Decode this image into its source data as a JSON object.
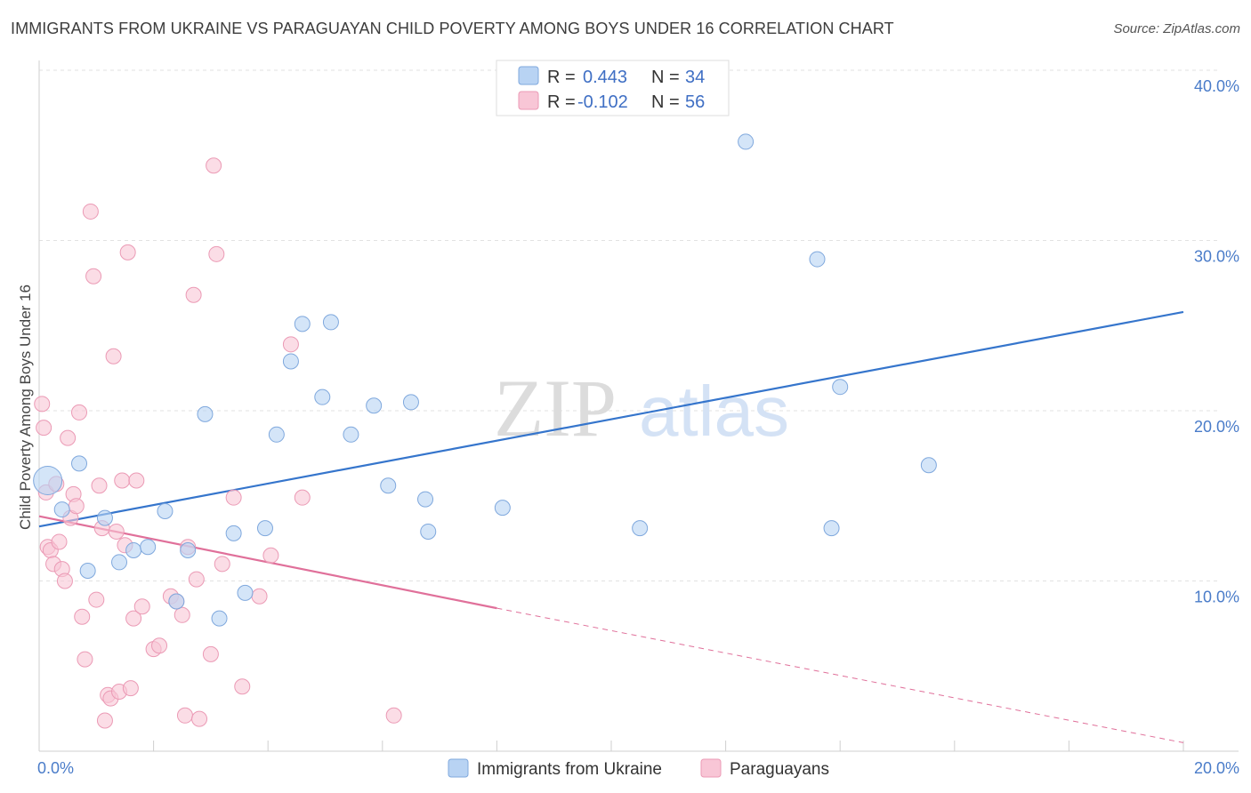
{
  "title": "IMMIGRANTS FROM UKRAINE VS PARAGUAYAN CHILD POVERTY AMONG BOYS UNDER 16 CORRELATION CHART",
  "source": "Source: ZipAtlas.com",
  "watermark": {
    "zip": "ZIP",
    "atlas": "atlas"
  },
  "legend_top": [
    {
      "r_label": "R =",
      "r_value": "0.443",
      "n_label": "N =",
      "n_value": "34"
    },
    {
      "r_label": "R =",
      "r_value": "-0.102",
      "n_label": "N =",
      "n_value": "56"
    }
  ],
  "colors": {
    "ukraine_fill": "#b8d3f3",
    "ukraine_stroke": "#7fa8dd",
    "ukraine_line": "#3575cc",
    "paraguay_fill": "#f8c6d6",
    "paraguay_stroke": "#eb9ab5",
    "paraguay_line": "#e0709a",
    "grid": "#e2e2e2",
    "tick_text": "#4a7cc9"
  },
  "chart_data": {
    "type": "scatter",
    "xlabel": "",
    "ylabel": "Child Poverty Among Boys Under 16",
    "xlim": [
      0,
      20
    ],
    "ylim": [
      0,
      40
    ],
    "x_tick_labels": [
      "0.0%",
      "20.0%"
    ],
    "y_ticks": [
      10,
      20,
      30,
      40
    ],
    "y_tick_labels": [
      "10.0%",
      "20.0%",
      "30.0%",
      "40.0%"
    ],
    "grid": true,
    "legend_position": "top-center",
    "series": [
      {
        "name": "Immigrants from Ukraine",
        "points": [
          [
            0.15,
            15.9
          ],
          [
            0.4,
            14.2
          ],
          [
            0.7,
            16.9
          ],
          [
            0.85,
            10.6
          ],
          [
            1.15,
            13.7
          ],
          [
            1.4,
            11.1
          ],
          [
            1.65,
            11.8
          ],
          [
            1.9,
            12.0
          ],
          [
            2.2,
            14.1
          ],
          [
            2.4,
            8.8
          ],
          [
            2.6,
            11.8
          ],
          [
            2.9,
            19.8
          ],
          [
            3.15,
            7.8
          ],
          [
            3.4,
            12.8
          ],
          [
            3.6,
            9.3
          ],
          [
            3.95,
            13.1
          ],
          [
            4.15,
            18.6
          ],
          [
            4.4,
            22.9
          ],
          [
            4.6,
            25.1
          ],
          [
            4.95,
            20.8
          ],
          [
            5.1,
            25.2
          ],
          [
            5.45,
            18.6
          ],
          [
            5.85,
            20.3
          ],
          [
            6.1,
            15.6
          ],
          [
            6.5,
            20.5
          ],
          [
            6.75,
            14.8
          ],
          [
            6.8,
            12.9
          ],
          [
            8.1,
            14.3
          ],
          [
            10.5,
            13.1
          ],
          [
            12.35,
            35.8
          ],
          [
            13.6,
            28.9
          ],
          [
            13.85,
            13.1
          ],
          [
            14.0,
            21.4
          ],
          [
            15.55,
            16.8
          ]
        ],
        "trend": {
          "x": [
            0,
            20
          ],
          "y": [
            13.2,
            25.8
          ]
        }
      },
      {
        "name": "Paraguayans",
        "points": [
          [
            0.05,
            20.4
          ],
          [
            0.08,
            19.0
          ],
          [
            0.12,
            15.2
          ],
          [
            0.15,
            12.0
          ],
          [
            0.2,
            11.8
          ],
          [
            0.25,
            11.0
          ],
          [
            0.3,
            15.7
          ],
          [
            0.35,
            12.3
          ],
          [
            0.4,
            10.7
          ],
          [
            0.45,
            10.0
          ],
          [
            0.5,
            18.4
          ],
          [
            0.55,
            13.7
          ],
          [
            0.6,
            15.1
          ],
          [
            0.65,
            14.4
          ],
          [
            0.7,
            19.9
          ],
          [
            0.75,
            7.9
          ],
          [
            0.8,
            5.4
          ],
          [
            0.9,
            31.7
          ],
          [
            0.95,
            27.9
          ],
          [
            1.0,
            8.9
          ],
          [
            1.05,
            15.6
          ],
          [
            1.1,
            13.1
          ],
          [
            1.15,
            1.8
          ],
          [
            1.2,
            3.3
          ],
          [
            1.25,
            3.1
          ],
          [
            1.3,
            23.2
          ],
          [
            1.35,
            12.9
          ],
          [
            1.4,
            3.5
          ],
          [
            1.45,
            15.9
          ],
          [
            1.5,
            12.1
          ],
          [
            1.55,
            29.3
          ],
          [
            1.6,
            3.7
          ],
          [
            1.65,
            7.8
          ],
          [
            1.7,
            15.9
          ],
          [
            1.8,
            8.5
          ],
          [
            2.0,
            6.0
          ],
          [
            2.1,
            6.2
          ],
          [
            2.3,
            9.1
          ],
          [
            2.4,
            8.8
          ],
          [
            2.5,
            8.0
          ],
          [
            2.55,
            2.1
          ],
          [
            2.6,
            12.0
          ],
          [
            2.7,
            26.8
          ],
          [
            2.75,
            10.1
          ],
          [
            2.8,
            1.9
          ],
          [
            3.0,
            5.7
          ],
          [
            3.05,
            34.4
          ],
          [
            3.1,
            29.2
          ],
          [
            3.2,
            11.0
          ],
          [
            3.4,
            14.9
          ],
          [
            3.55,
            3.8
          ],
          [
            3.85,
            9.1
          ],
          [
            4.05,
            11.5
          ],
          [
            4.4,
            23.9
          ],
          [
            4.6,
            14.9
          ],
          [
            6.2,
            2.1
          ]
        ],
        "trend": {
          "x": [
            0,
            8
          ],
          "y": [
            13.8,
            8.4
          ]
        },
        "trend_extension": {
          "x": [
            8,
            20
          ],
          "y": [
            8.4,
            0.5
          ]
        }
      }
    ]
  },
  "legend_bottom": [
    {
      "label": "Immigrants from Ukraine"
    },
    {
      "label": "Paraguayans"
    }
  ]
}
